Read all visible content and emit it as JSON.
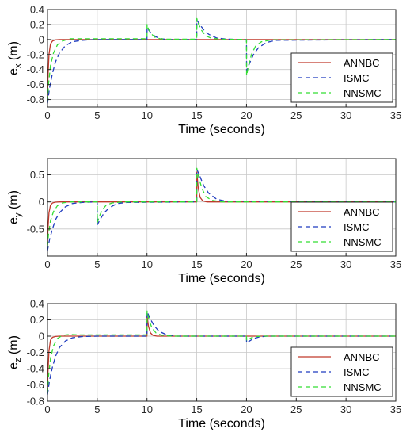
{
  "colors": {
    "ANNBC": "#c0392b",
    "ISMC": "#1f3bbf",
    "NNSMC": "#33dd33",
    "grid": "#c8c8c8",
    "axis": "#262626"
  },
  "chart_data": [
    {
      "type": "line",
      "xlabel": "Time (seconds)",
      "ylabel_main": "e",
      "ylabel_sub": "x",
      "ylabel_unit": " (m)",
      "xlim": [
        0,
        35
      ],
      "ylim": [
        -0.9,
        0.4
      ],
      "xticks": [
        0,
        5,
        10,
        15,
        20,
        25,
        30,
        35
      ],
      "yticks": [
        0.4,
        0.2,
        0,
        -0.2,
        -0.4,
        -0.6,
        -0.8
      ],
      "grid": true,
      "legend": "bottom-right",
      "series": [
        {
          "name": "ANNBC",
          "style": "solid",
          "x": [
            0,
            0.05,
            0.15,
            0.3,
            0.5,
            0.8,
            1.2,
            35
          ],
          "y": [
            -0.78,
            -0.5,
            -0.2,
            -0.06,
            -0.02,
            -0.005,
            0,
            0
          ]
        },
        {
          "name": "ISMC",
          "style": "dashed",
          "x": [
            0,
            0.2,
            0.5,
            0.8,
            1.2,
            1.8,
            2.5,
            3.5,
            5,
            10,
            10.01,
            10.2,
            10.5,
            11,
            11.5,
            12,
            15,
            15.01,
            15.3,
            15.7,
            16.2,
            17,
            18,
            20,
            20.01,
            20.3,
            20.7,
            21.2,
            22,
            23,
            35
          ],
          "y": [
            -0.85,
            -0.65,
            -0.45,
            -0.3,
            -0.18,
            -0.08,
            -0.03,
            -0.01,
            0,
            0,
            0.16,
            0.12,
            0.07,
            0.03,
            0.01,
            0,
            0,
            0.26,
            0.2,
            0.13,
            0.07,
            0.02,
            0.005,
            0,
            -0.42,
            -0.32,
            -0.2,
            -0.11,
            -0.04,
            -0.01,
            0
          ]
        },
        {
          "name": "NNSMC",
          "style": "dashed",
          "x": [
            0,
            0.1,
            0.3,
            0.6,
            1.0,
            1.5,
            2.2,
            3.5,
            5,
            10,
            10.01,
            10.15,
            10.4,
            10.8,
            11.3,
            12,
            15,
            15.01,
            15.2,
            15.5,
            15.9,
            16.5,
            17.5,
            20,
            20.01,
            20.2,
            20.5,
            20.9,
            21.5,
            22.5,
            35
          ],
          "y": [
            -0.82,
            -0.6,
            -0.35,
            -0.18,
            -0.07,
            -0.02,
            0.01,
            0.01,
            0.01,
            0.01,
            0.2,
            0.14,
            0.08,
            0.03,
            0.01,
            0.005,
            0.005,
            0.28,
            0.2,
            0.12,
            0.05,
            0.015,
            0.005,
            0,
            -0.48,
            -0.35,
            -0.2,
            -0.09,
            -0.03,
            -0.005,
            0
          ]
        }
      ]
    },
    {
      "type": "line",
      "xlabel": "Time (seconds)",
      "ylabel_main": "e",
      "ylabel_sub": "y",
      "ylabel_unit": " (m)",
      "xlim": [
        0,
        35
      ],
      "ylim": [
        -1.0,
        0.8
      ],
      "xticks": [
        0,
        5,
        10,
        15,
        20,
        25,
        30,
        35
      ],
      "yticks": [
        0.5,
        0,
        -0.5
      ],
      "grid": true,
      "legend": "bottom-right",
      "series": [
        {
          "name": "ANNBC",
          "style": "solid",
          "x": [
            0,
            0.05,
            0.15,
            0.3,
            0.5,
            0.8,
            1.2,
            15,
            15.01,
            15.15,
            15.35,
            15.6,
            16,
            35
          ],
          "y": [
            -0.78,
            -0.5,
            -0.2,
            -0.06,
            -0.02,
            -0.005,
            0,
            0,
            0.55,
            0.25,
            0.08,
            0.02,
            0,
            0
          ]
        },
        {
          "name": "ISMC",
          "style": "dashed",
          "x": [
            0,
            0.2,
            0.5,
            0.8,
            1.2,
            1.8,
            2.5,
            3.5,
            5,
            5.01,
            5.3,
            5.7,
            6.2,
            7,
            8,
            15,
            15.01,
            15.3,
            15.7,
            16.2,
            17,
            18,
            35
          ],
          "y": [
            -0.9,
            -0.7,
            -0.5,
            -0.33,
            -0.2,
            -0.09,
            -0.03,
            -0.01,
            0,
            -0.42,
            -0.32,
            -0.2,
            -0.11,
            -0.03,
            -0.01,
            0,
            0.6,
            0.48,
            0.3,
            0.16,
            0.05,
            0.01,
            0
          ]
        },
        {
          "name": "NNSMC",
          "style": "dashed",
          "x": [
            0,
            0.1,
            0.3,
            0.6,
            1.0,
            1.5,
            2.2,
            5,
            5.01,
            5.2,
            5.5,
            5.9,
            6.5,
            7.5,
            15,
            15.01,
            15.2,
            15.5,
            15.9,
            16.5,
            17.5,
            35
          ],
          "y": [
            -0.82,
            -0.6,
            -0.35,
            -0.18,
            -0.07,
            -0.02,
            0,
            0,
            -0.38,
            -0.27,
            -0.15,
            -0.06,
            -0.02,
            0,
            0,
            0.62,
            0.45,
            0.26,
            0.1,
            0.03,
            0,
            0
          ]
        }
      ]
    },
    {
      "type": "line",
      "xlabel": "Time (seconds)",
      "ylabel_main": "e",
      "ylabel_sub": "z",
      "ylabel_unit": " (m)",
      "xlim": [
        0,
        35
      ],
      "ylim": [
        -0.8,
        0.4
      ],
      "xticks": [
        0,
        5,
        10,
        15,
        20,
        25,
        30,
        35
      ],
      "yticks": [
        0.4,
        0.2,
        0,
        -0.2,
        -0.4,
        -0.6,
        -0.8
      ],
      "grid": true,
      "legend": "bottom-right",
      "series": [
        {
          "name": "ANNBC",
          "style": "solid",
          "x": [
            0,
            0.05,
            0.15,
            0.3,
            0.5,
            0.8,
            1.2,
            10,
            10.01,
            10.15,
            10.35,
            10.6,
            11,
            35
          ],
          "y": [
            -0.68,
            -0.45,
            -0.18,
            -0.05,
            -0.015,
            -0.004,
            0,
            0,
            0.25,
            0.12,
            0.04,
            0.01,
            0,
            0
          ]
        },
        {
          "name": "ISMC",
          "style": "dashed",
          "x": [
            0,
            0.2,
            0.5,
            0.8,
            1.2,
            1.8,
            2.5,
            3.5,
            5,
            10,
            10.01,
            10.3,
            10.7,
            11.2,
            12,
            13,
            20,
            20.01,
            20.3,
            20.7,
            21.3,
            22,
            35
          ],
          "y": [
            -0.72,
            -0.55,
            -0.38,
            -0.25,
            -0.14,
            -0.06,
            -0.02,
            -0.005,
            0,
            0,
            0.3,
            0.22,
            0.13,
            0.06,
            0.015,
            0,
            0,
            -0.09,
            -0.06,
            -0.03,
            -0.01,
            0,
            0
          ]
        },
        {
          "name": "NNSMC",
          "style": "dashed",
          "x": [
            0,
            0.1,
            0.3,
            0.6,
            1.0,
            1.5,
            2.2,
            3.5,
            10,
            10.01,
            10.2,
            10.5,
            10.9,
            11.5,
            12.5,
            20,
            20.01,
            20.2,
            20.5,
            20.9,
            21.5,
            35
          ],
          "y": [
            -0.7,
            -0.5,
            -0.28,
            -0.12,
            -0.03,
            0.01,
            0.02,
            0.015,
            0.015,
            0.31,
            0.2,
            0.1,
            0.04,
            0.01,
            0,
            0,
            -0.06,
            -0.04,
            -0.02,
            -0.005,
            0,
            0
          ]
        }
      ]
    }
  ]
}
